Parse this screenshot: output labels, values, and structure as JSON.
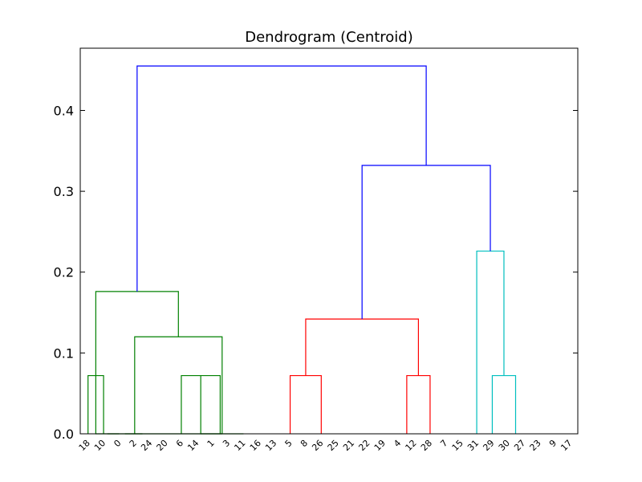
{
  "chart_data": {
    "type": "dendrogram",
    "title": "Dendrogram (Centroid)",
    "xlabel": "",
    "ylabel": "",
    "ylim": [
      0.0,
      0.477
    ],
    "yticks": [
      0.0,
      0.1,
      0.2,
      0.3,
      0.4
    ],
    "ytick_labels": [
      "0.0",
      "0.1",
      "0.2",
      "0.3",
      "0.4"
    ],
    "grid": false,
    "leaves": [
      "18",
      "10",
      "0",
      "2",
      "24",
      "20",
      "6",
      "14",
      "1",
      "3",
      "11",
      "16",
      "13",
      "5",
      "8",
      "26",
      "25",
      "21",
      "22",
      "19",
      "4",
      "12",
      "28",
      "7",
      "15",
      "31",
      "29",
      "30",
      "27",
      "23",
      "9",
      "17"
    ],
    "colors": {
      "green": "#008000",
      "red": "#ff0000",
      "cyan": "#00bfbf",
      "blue": "#0000ff"
    },
    "links": [
      {
        "left": [
          0
        ],
        "right": [
          1
        ],
        "height": 0.072,
        "color": "green"
      },
      {
        "left": [
          0,
          1
        ],
        "right": [
          2
        ],
        "height": 0.0,
        "color": "green"
      },
      {
        "left": [
          0,
          1,
          2
        ],
        "right": [
          3,
          4
        ],
        "height": 0.0,
        "color": "green"
      },
      {
        "left": [
          5,
          6,
          7
        ],
        "right": [
          8,
          9
        ],
        "height": 0.072,
        "color": "green"
      },
      {
        "left": [
          5,
          6,
          7,
          8,
          9
        ],
        "right": [
          10
        ],
        "height": 0.0,
        "color": "green"
      },
      {
        "left": [
          0,
          1,
          2,
          3,
          4
        ],
        "right": [
          5,
          6,
          7,
          8,
          9,
          10
        ],
        "height": 0.0,
        "color": "green"
      },
      {
        "left": [
          2,
          3,
          4
        ],
        "right": [
          5,
          6,
          7,
          8,
          9,
          10
        ],
        "height": 0.12,
        "color": "green"
      },
      {
        "left": [
          0,
          1
        ],
        "right": [
          2,
          3,
          4,
          5,
          6,
          7,
          8,
          9,
          10
        ],
        "height": 0.176,
        "color": "green"
      },
      {
        "left": [
          12,
          13,
          14
        ],
        "right": [
          15
        ],
        "height": 0.072,
        "color": "red"
      },
      {
        "left": [
          20,
          21
        ],
        "right": [
          22
        ],
        "height": 0.072,
        "color": "red"
      },
      {
        "left": [
          12,
          13,
          14,
          15
        ],
        "right": [
          20,
          21,
          22
        ],
        "height": 0.142,
        "color": "red"
      },
      {
        "left": [
          26
        ],
        "right": [
          27,
          28
        ],
        "height": 0.072,
        "color": "cyan"
      },
      {
        "left": [
          25
        ],
        "right": [
          26,
          27,
          28
        ],
        "height": 0.226,
        "color": "cyan"
      },
      {
        "left": [
          12,
          13,
          14,
          15,
          20,
          21,
          22
        ],
        "right": [
          25,
          26,
          27,
          28
        ],
        "height": 0.332,
        "color": "blue"
      },
      {
        "left": [
          0,
          1,
          2,
          3,
          4,
          5,
          6,
          7,
          8,
          9,
          10
        ],
        "right": [
          12,
          13,
          14,
          15,
          20,
          21,
          22,
          25,
          26,
          27,
          28
        ],
        "height": 0.455,
        "color": "blue"
      }
    ]
  }
}
